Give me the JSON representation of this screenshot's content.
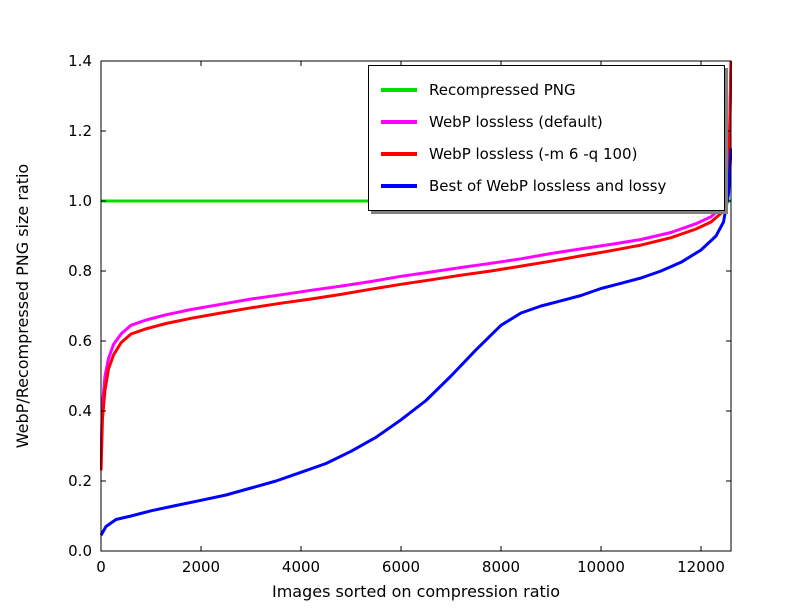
{
  "chart_data": {
    "type": "line",
    "title": "",
    "xlabel": "Images sorted on compression ratio",
    "ylabel": "WebP/Recompressed PNG size ratio",
    "xlim": [
      0,
      12600
    ],
    "ylim": [
      0.0,
      1.4
    ],
    "grid": false,
    "legend_position": "upper center-right inside",
    "xticks": [
      {
        "value": 0,
        "label": "0"
      },
      {
        "value": 2000,
        "label": "2000"
      },
      {
        "value": 4000,
        "label": "4000"
      },
      {
        "value": 6000,
        "label": "6000"
      },
      {
        "value": 8000,
        "label": "8000"
      },
      {
        "value": 10000,
        "label": "10000"
      },
      {
        "value": 12000,
        "label": "12000"
      }
    ],
    "yticks": [
      {
        "value": 0.0,
        "label": "0.0"
      },
      {
        "value": 0.2,
        "label": "0.2"
      },
      {
        "value": 0.4,
        "label": "0.4"
      },
      {
        "value": 0.6,
        "label": "0.6"
      },
      {
        "value": 0.8,
        "label": "0.8"
      },
      {
        "value": 1.0,
        "label": "1.0"
      },
      {
        "value": 1.2,
        "label": "1.2"
      },
      {
        "value": 1.4,
        "label": "1.4"
      }
    ],
    "series": [
      {
        "name": "Recompressed PNG",
        "color": "#00e000",
        "x": [
          0,
          12600
        ],
        "y": [
          1.0,
          1.0
        ]
      },
      {
        "name": "WebP lossless (default)",
        "color": "#ff00ff",
        "x": [
          0,
          30,
          80,
          150,
          250,
          400,
          600,
          900,
          1300,
          1800,
          2400,
          3000,
          3600,
          4200,
          4800,
          5400,
          6000,
          6600,
          7200,
          7800,
          8400,
          9000,
          9600,
          10200,
          10800,
          11400,
          11900,
          12200,
          12400,
          12500,
          12560,
          12600
        ],
        "y": [
          0.28,
          0.42,
          0.5,
          0.55,
          0.59,
          0.62,
          0.645,
          0.66,
          0.675,
          0.69,
          0.705,
          0.72,
          0.732,
          0.745,
          0.757,
          0.77,
          0.785,
          0.797,
          0.81,
          0.822,
          0.835,
          0.85,
          0.863,
          0.876,
          0.89,
          0.91,
          0.935,
          0.955,
          0.98,
          1.01,
          1.1,
          1.4
        ]
      },
      {
        "name": "WebP lossless (-m 6 -q 100)",
        "color": "#ff0000",
        "x": [
          0,
          30,
          80,
          150,
          250,
          400,
          600,
          900,
          1300,
          1800,
          2400,
          3000,
          3600,
          4200,
          4800,
          5400,
          6000,
          6600,
          7200,
          7800,
          8400,
          9000,
          9600,
          10200,
          10800,
          11400,
          11900,
          12200,
          12400,
          12500,
          12560,
          12600
        ],
        "y": [
          0.23,
          0.38,
          0.46,
          0.52,
          0.56,
          0.595,
          0.62,
          0.635,
          0.65,
          0.665,
          0.68,
          0.695,
          0.708,
          0.72,
          0.733,
          0.748,
          0.762,
          0.775,
          0.788,
          0.8,
          0.814,
          0.828,
          0.843,
          0.858,
          0.874,
          0.895,
          0.92,
          0.94,
          0.965,
          1.0,
          1.09,
          1.4
        ]
      },
      {
        "name": "Best of WebP lossless and lossy",
        "color": "#0000ff",
        "x": [
          0,
          100,
          300,
          600,
          1000,
          1500,
          2000,
          2500,
          3000,
          3500,
          4000,
          4500,
          5000,
          5500,
          6000,
          6500,
          7000,
          7500,
          8000,
          8400,
          8800,
          9200,
          9600,
          10000,
          10400,
          10800,
          11200,
          11600,
          12000,
          12300,
          12450,
          12550,
          12600
        ],
        "y": [
          0.045,
          0.07,
          0.09,
          0.1,
          0.115,
          0.13,
          0.145,
          0.16,
          0.18,
          0.2,
          0.225,
          0.25,
          0.285,
          0.325,
          0.375,
          0.43,
          0.5,
          0.575,
          0.645,
          0.68,
          0.7,
          0.715,
          0.73,
          0.75,
          0.765,
          0.78,
          0.8,
          0.825,
          0.86,
          0.9,
          0.94,
          1.02,
          1.15
        ]
      }
    ]
  }
}
